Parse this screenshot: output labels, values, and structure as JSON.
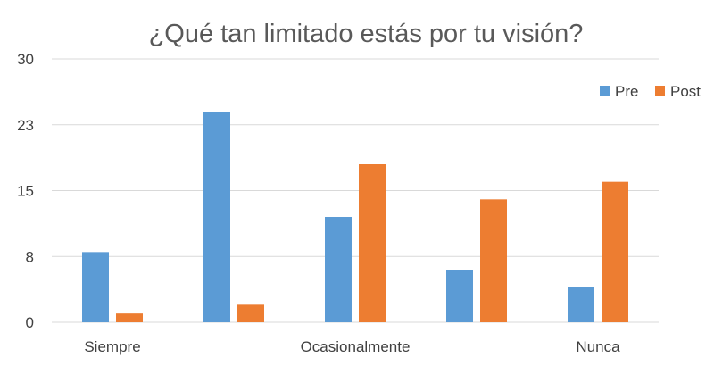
{
  "chart_data": {
    "type": "bar",
    "title": "¿Qué tan limitado estás por tu visión?",
    "xlabel": "",
    "ylabel": "",
    "categories": [
      "Siempre",
      "",
      "Ocasionalmente",
      "",
      "Nunca"
    ],
    "series": [
      {
        "name": "Pre",
        "color": "#5b9bd5",
        "values": [
          8,
          24,
          12,
          6,
          4
        ]
      },
      {
        "name": "Post",
        "color": "#ed7d31",
        "values": [
          1,
          2,
          18,
          14,
          16
        ]
      }
    ],
    "ylim": [
      0,
      30
    ],
    "yticks": [
      "0",
      "8",
      "15",
      "23",
      "30"
    ],
    "grid": true,
    "legend_position": "top-right"
  }
}
